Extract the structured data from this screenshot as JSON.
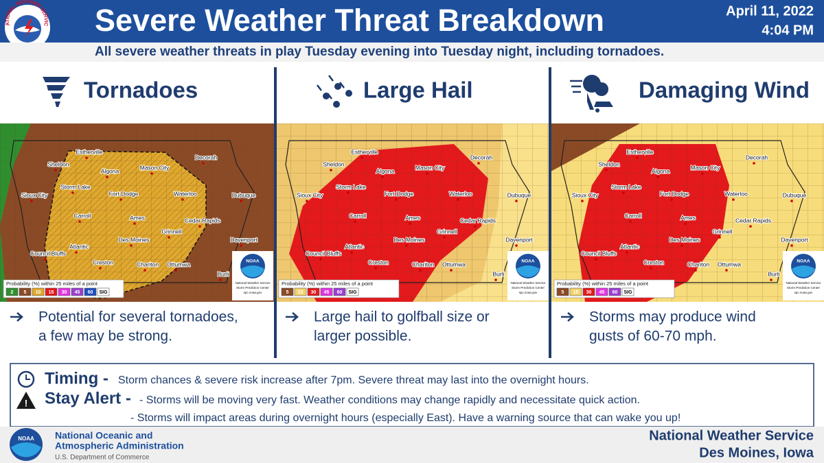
{
  "header": {
    "title": "Severe Weather Threat Breakdown",
    "date": "April 11, 2022",
    "time": "4:04 PM",
    "subtitle": "All severe weather threats in play Tuesday evening into Tuesday night, including tornadoes.",
    "logo_text": "NATIONAL WEATHER SERVICE"
  },
  "panels": [
    {
      "title": "Tornadoes",
      "bullet": [
        "Potential for several tornadoes,",
        "a few may be strong."
      ],
      "legend": [
        {
          "label": "2",
          "color": "#2f8f2f"
        },
        {
          "label": "5",
          "color": "#8b4a26"
        },
        {
          "label": "10",
          "color": "#e0a82e"
        },
        {
          "label": "15",
          "color": "#e3191c"
        },
        {
          "label": "30",
          "color": "#e235e1"
        },
        {
          "label": "45",
          "color": "#9a3fd0"
        },
        {
          "label": "60",
          "color": "#1f4fbf"
        },
        {
          "label": "SIG",
          "color": "#ffffff"
        }
      ]
    },
    {
      "title": "Large Hail",
      "bullet": [
        "Large hail to golfball size or",
        "larger possible."
      ],
      "legend": [
        {
          "label": "5",
          "color": "#8b4a26"
        },
        {
          "label": "15",
          "color": "#f3d36b"
        },
        {
          "label": "30",
          "color": "#e3191c"
        },
        {
          "label": "45",
          "color": "#e235e1"
        },
        {
          "label": "60",
          "color": "#9a3fd0"
        },
        {
          "label": "SIG",
          "color": "#ffffff"
        }
      ]
    },
    {
      "title": "Damaging Wind",
      "bullet": [
        "Storms may produce wind",
        "gusts of 60-70 mph."
      ],
      "legend": [
        {
          "label": "5",
          "color": "#8b4a26"
        },
        {
          "label": "15",
          "color": "#f3d36b"
        },
        {
          "label": "30",
          "color": "#e3191c"
        },
        {
          "label": "45",
          "color": "#e235e1"
        },
        {
          "label": "60",
          "color": "#9a3fd0"
        },
        {
          "label": "SIG",
          "color": "#ffffff"
        }
      ]
    }
  ],
  "map": {
    "cities": [
      "Estherville",
      "Sheldon",
      "Algona",
      "Mason City",
      "Decorah",
      "Sioux City",
      "Storm Lake",
      "Fort Dodge",
      "Waterloo",
      "Dubuque",
      "Carroll",
      "Ames",
      "Cedar Rapids",
      "Grinnell",
      "Des Moines",
      "Atlantic",
      "Davenport",
      "Council Bluffs",
      "Creston",
      "Chariton",
      "Ottumwa",
      "Burli"
    ],
    "legend_title": "Probability (%) within 25 miles of a point",
    "noaa_logo": "NOAA",
    "noaa_caption": [
      "National Weather Service",
      "Storm Prediction Center",
      "spc.noaa.gov"
    ]
  },
  "timing": {
    "label": "Timing -",
    "text": "Storm chances & severe risk increase after 7pm. Severe threat may last into the overnight hours."
  },
  "alert": {
    "label": "Stay Alert -",
    "lines": [
      "- Storms will be moving very fast. Weather conditions may change rapidly and necessitate quick action.",
      "- Storms will impact areas during overnight hours (especially East). Have a warning source that can wake you up!"
    ]
  },
  "footer": {
    "noaa_logo": "NOAA",
    "agency": [
      "National Oceanic and",
      "Atmospheric Administration"
    ],
    "department": "U.S. Department of Commerce",
    "office": [
      "National Weather Service",
      "Des Moines, Iowa"
    ]
  }
}
